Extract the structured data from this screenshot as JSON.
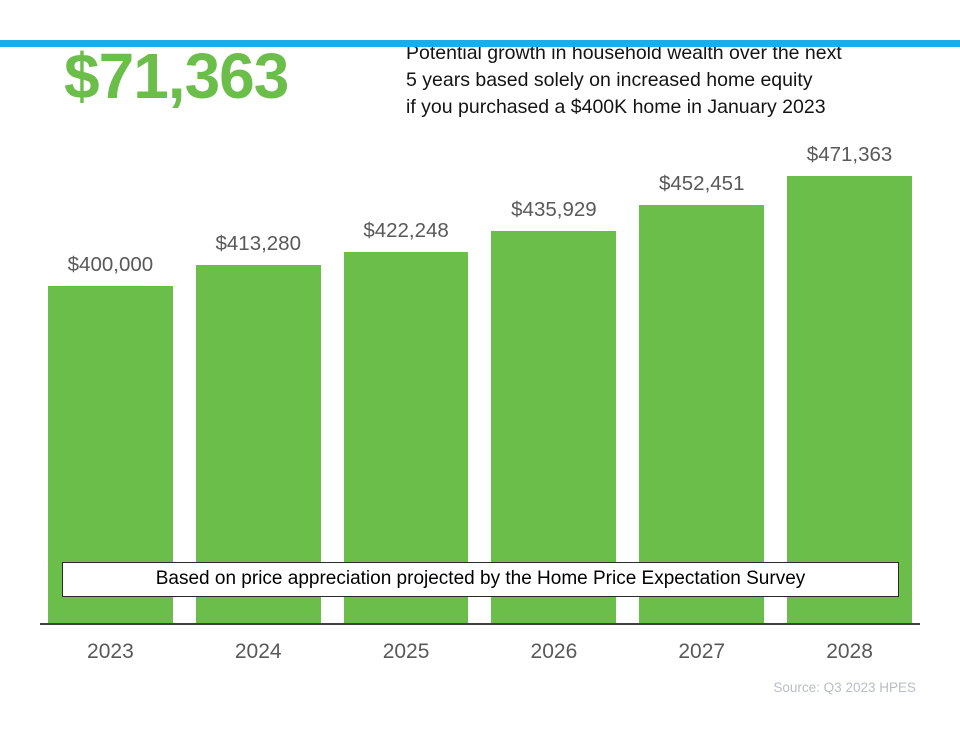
{
  "theme": {
    "accent_color": "#1CADE4",
    "green": "#6CBE4A",
    "label_gray": "#595959",
    "source_gray": "#b9bdc6"
  },
  "header": {
    "highlight_value": "$71,363",
    "description_lines": [
      "Potential growth in household wealth over the next",
      "5 years based solely on increased home equity",
      "if you purchased a $400K home in January 2023"
    ]
  },
  "chart_data": {
    "type": "bar",
    "categories": [
      "2023",
      "2024",
      "2025",
      "2026",
      "2027",
      "2028"
    ],
    "values": [
      400000,
      413280,
      422248,
      435929,
      452451,
      471363
    ],
    "value_labels": [
      "$400,000",
      "$413,280",
      "$422,248",
      "$435,929",
      "$452,451",
      "$471,363"
    ],
    "title": "",
    "xlabel": "",
    "ylabel": "",
    "ylim": [
      180000,
      480000
    ],
    "bar_color": "#6CBE4A",
    "grid": false,
    "legend": false
  },
  "overlay_note": "Based on price appreciation projected by the Home Price Expectation Survey",
  "source": "Source: Q3 2023 HPES"
}
